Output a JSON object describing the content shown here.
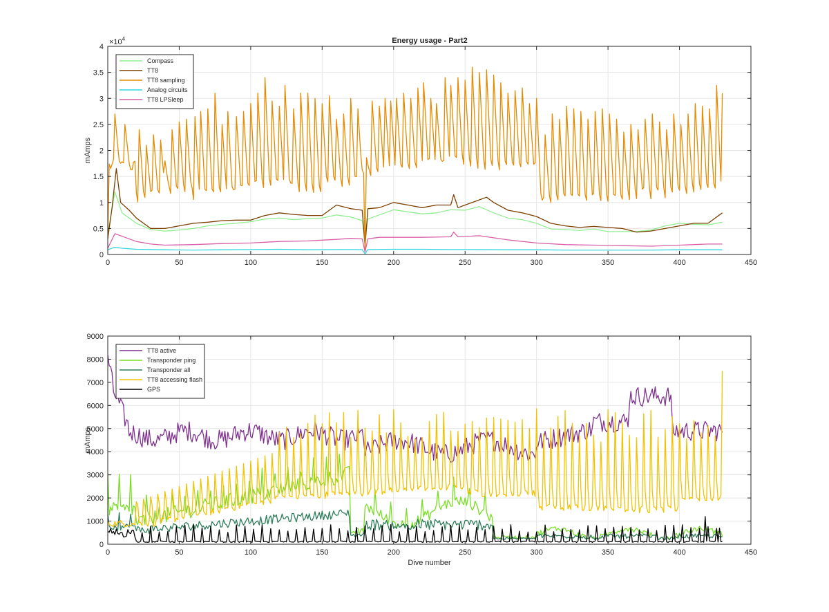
{
  "figure": {
    "title": "Energy usage - Part2"
  },
  "chart_data": [
    {
      "type": "line",
      "title": "Energy usage - Part2",
      "xlabel": "",
      "ylabel": "mAmps",
      "exponent_label": "×10",
      "exponent_power": "4",
      "xlim": [
        0,
        450
      ],
      "ylim": [
        0,
        40000
      ],
      "xticks": [
        0,
        50,
        100,
        150,
        200,
        250,
        300,
        350,
        400,
        450
      ],
      "yticks": [
        0,
        5000,
        10000,
        15000,
        20000,
        25000,
        30000,
        35000,
        40000
      ],
      "ytick_labels": [
        "0",
        "0.5",
        "1",
        "1.5",
        "2",
        "2.5",
        "3",
        "3.5",
        "4"
      ],
      "grid": true,
      "legend_position": "top-left",
      "series": [
        {
          "name": "Compass",
          "color": "#90EE90",
          "x": [
            0,
            5,
            10,
            20,
            30,
            40,
            50,
            60,
            70,
            80,
            90,
            100,
            110,
            120,
            130,
            140,
            150,
            160,
            170,
            178,
            180,
            182,
            190,
            200,
            210,
            220,
            230,
            240,
            250,
            260,
            270,
            280,
            290,
            300,
            310,
            320,
            330,
            340,
            350,
            360,
            370,
            380,
            390,
            400,
            410,
            420,
            430
          ],
          "y": [
            4000,
            12000,
            8000,
            6000,
            4800,
            4500,
            4700,
            5000,
            5500,
            5800,
            6000,
            6300,
            6800,
            7000,
            6700,
            6900,
            7000,
            7600,
            7200,
            6500,
            3000,
            6800,
            7600,
            8600,
            8200,
            7800,
            8000,
            8600,
            8500,
            9200,
            8000,
            7000,
            6700,
            6000,
            4900,
            4800,
            4600,
            4900,
            4400,
            4400,
            4400,
            4700,
            5500,
            6000,
            5800,
            5700,
            6200
          ]
        },
        {
          "name": "TT8",
          "color": "#7B3F00",
          "x": [
            0,
            3,
            6,
            9,
            15,
            20,
            30,
            40,
            50,
            60,
            70,
            80,
            90,
            100,
            110,
            120,
            130,
            140,
            150,
            160,
            170,
            178,
            180,
            182,
            190,
            200,
            210,
            220,
            230,
            240,
            242,
            245,
            250,
            260,
            265,
            270,
            280,
            290,
            300,
            310,
            320,
            330,
            340,
            350,
            360,
            370,
            380,
            390,
            400,
            410,
            420,
            430
          ],
          "y": [
            3000,
            9000,
            16500,
            10000,
            8500,
            7000,
            5000,
            5000,
            5500,
            6000,
            6200,
            6500,
            6600,
            6600,
            7500,
            8000,
            7700,
            7500,
            7500,
            9500,
            8800,
            8500,
            1500,
            8800,
            9000,
            10000,
            9500,
            9000,
            9500,
            9500,
            11500,
            9000,
            9500,
            10500,
            11000,
            10000,
            8500,
            8000,
            7300,
            6000,
            5500,
            5200,
            5400,
            5200,
            5000,
            4300,
            4500,
            5000,
            5500,
            6000,
            6000,
            8000
          ]
        },
        {
          "name": "TT8 sampling",
          "color": "#E68A00",
          "x": [],
          "y": []
        },
        {
          "name": "Analog circuits",
          "color": "#33D6E0",
          "x": [
            0,
            5,
            10,
            20,
            40,
            60,
            80,
            100,
            120,
            140,
            160,
            178,
            180,
            182,
            200,
            220,
            240,
            260,
            280,
            300,
            320,
            340,
            360,
            380,
            400,
            420,
            430
          ],
          "y": [
            900,
            1400,
            1200,
            1000,
            900,
            850,
            900,
            950,
            1000,
            900,
            950,
            950,
            100,
            950,
            1000,
            1000,
            950,
            950,
            900,
            900,
            850,
            850,
            850,
            850,
            900,
            900,
            900
          ]
        },
        {
          "name": "TT8 LPSleep",
          "color": "#D95FA8",
          "x": [
            0,
            5,
            10,
            20,
            30,
            40,
            60,
            80,
            100,
            120,
            140,
            160,
            170,
            178,
            180,
            182,
            190,
            200,
            220,
            240,
            242,
            245,
            260,
            280,
            300,
            320,
            340,
            360,
            380,
            400,
            420,
            430
          ],
          "y": [
            1200,
            4000,
            3500,
            2500,
            2000,
            1800,
            1900,
            2100,
            2200,
            2500,
            2600,
            2900,
            3100,
            3000,
            500,
            3000,
            3300,
            3300,
            3300,
            3400,
            4300,
            3400,
            3600,
            2800,
            2200,
            1900,
            1800,
            1700,
            1600,
            1800,
            2000,
            2000
          ]
        }
      ]
    },
    {
      "type": "line",
      "title": "",
      "xlabel": "Dive number",
      "ylabel": "mAmps",
      "xlim": [
        0,
        450
      ],
      "ylim": [
        0,
        9000
      ],
      "xticks": [
        0,
        50,
        100,
        150,
        200,
        250,
        300,
        350,
        400,
        450
      ],
      "yticks": [
        0,
        1000,
        2000,
        3000,
        4000,
        5000,
        6000,
        7000,
        8000,
        9000
      ],
      "ytick_labels": [
        "0",
        "1000",
        "2000",
        "3000",
        "4000",
        "5000",
        "6000",
        "7000",
        "8000",
        "9000"
      ],
      "grid": true,
      "legend_position": "top-left",
      "series": [
        {
          "name": "TT8 active",
          "color": "#7E2F8E",
          "x": [],
          "y": []
        },
        {
          "name": "Transponder ping",
          "color": "#77DD22",
          "x": [],
          "y": []
        },
        {
          "name": "Transponder all",
          "color": "#2E7D5B",
          "x": [],
          "y": []
        },
        {
          "name": "TT8 accessing flash",
          "color": "#F2C200",
          "x": [],
          "y": []
        },
        {
          "name": "GPS",
          "color": "#000000",
          "x": [],
          "y": []
        }
      ]
    }
  ]
}
